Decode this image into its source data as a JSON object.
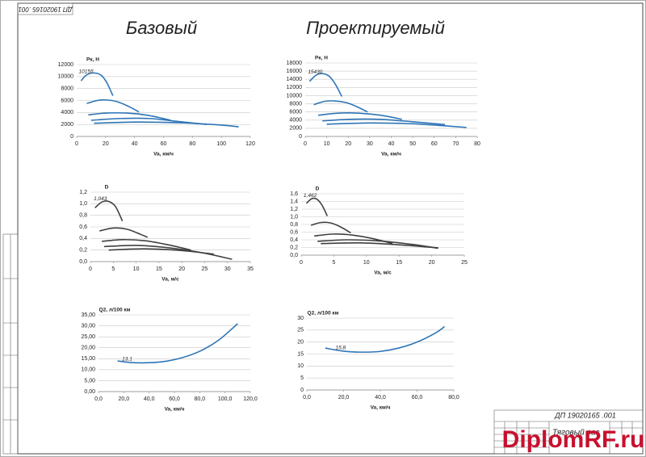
{
  "headings": {
    "base": "Базовый",
    "project": "Проектируемый"
  },
  "stamp": {
    "code_top": "ДП 19020165 .001",
    "code_bottom": "ДП 19020165 .001",
    "title": "Тяговый рас"
  },
  "watermark": "DiplomRF.ru",
  "chart_data": [
    {
      "type": "line",
      "y_label": "Pк, Н",
      "x_label": "Va, км/ч",
      "annotation": "10155",
      "xlim": [
        0,
        120
      ],
      "xticks": [
        0,
        20,
        40,
        60,
        80,
        100,
        120
      ],
      "ylim": [
        0,
        12000
      ],
      "yticks": [
        0,
        2000,
        4000,
        6000,
        8000,
        10000,
        12000
      ],
      "grid": true,
      "series": [
        {
          "color": "#2e75b6",
          "x": [
            3,
            7,
            12,
            17,
            21,
            25
          ],
          "values": [
            9300,
            10300,
            10600,
            10200,
            8900,
            6800
          ]
        },
        {
          "color": "#2e75b6",
          "x": [
            7,
            14,
            20,
            28,
            36,
            43
          ],
          "values": [
            5500,
            6000,
            6100,
            5800,
            5000,
            4100
          ]
        },
        {
          "color": "#2e75b6",
          "x": [
            8,
            20,
            35,
            50,
            65
          ],
          "values": [
            3600,
            3900,
            3900,
            3500,
            2700
          ]
        },
        {
          "color": "#2e75b6",
          "x": [
            10,
            30,
            50,
            70,
            90
          ],
          "values": [
            2700,
            3000,
            3000,
            2500,
            2000
          ]
        },
        {
          "color": "#2e75b6",
          "x": [
            12,
            40,
            70,
            100,
            112
          ],
          "values": [
            2200,
            2400,
            2300,
            1900,
            1600
          ]
        }
      ]
    },
    {
      "type": "line",
      "y_label": "Pк, Н",
      "x_label": "Va, км/ч",
      "annotation": "15430",
      "xlim": [
        0,
        80
      ],
      "xticks": [
        0,
        10,
        20,
        30,
        40,
        50,
        60,
        70,
        80
      ],
      "ylim": [
        0,
        18000
      ],
      "yticks": [
        0,
        2000,
        4000,
        6000,
        8000,
        10000,
        12000,
        14000,
        16000,
        18000
      ],
      "grid": true,
      "series": [
        {
          "color": "#2e75b6",
          "x": [
            2,
            5,
            8,
            11,
            14,
            17
          ],
          "values": [
            13500,
            15000,
            15400,
            14800,
            12800,
            9800
          ]
        },
        {
          "color": "#2e75b6",
          "x": [
            4,
            9,
            14,
            19,
            24,
            29
          ],
          "values": [
            7800,
            8600,
            8700,
            8300,
            7300,
            6000
          ]
        },
        {
          "color": "#2e75b6",
          "x": [
            6,
            15,
            25,
            35,
            45
          ],
          "values": [
            5200,
            5700,
            5700,
            5200,
            4200
          ]
        },
        {
          "color": "#2e75b6",
          "x": [
            8,
            20,
            35,
            50,
            65
          ],
          "values": [
            3800,
            4200,
            4200,
            3600,
            2900
          ]
        },
        {
          "color": "#2e75b6",
          "x": [
            10,
            30,
            50,
            65,
            75
          ],
          "values": [
            3000,
            3300,
            3100,
            2600,
            2200
          ]
        }
      ]
    },
    {
      "type": "line",
      "y_label": "D",
      "x_label": "Va, м/с",
      "annotation": "1,043",
      "xlim": [
        0,
        35
      ],
      "xticks": [
        0,
        5,
        10,
        15,
        20,
        25,
        30,
        35
      ],
      "ylim": [
        0,
        1.2
      ],
      "yticks": [
        {
          "value": 0,
          "label": "0,0"
        },
        {
          "value": 0.2,
          "label": "0,2"
        },
        {
          "value": 0.4,
          "label": "0,4"
        },
        {
          "value": 0.6,
          "label": "0,6"
        },
        {
          "value": 0.8,
          "label": "0,8"
        },
        {
          "value": 1,
          "label": "1,0"
        },
        {
          "value": 1.2,
          "label": "1,2"
        }
      ],
      "grid": true,
      "series": [
        {
          "color": "#404040",
          "x": [
            1,
            2.5,
            4,
            5.5,
            7
          ],
          "values": [
            0.93,
            1.03,
            1.04,
            0.95,
            0.7
          ]
        },
        {
          "color": "#404040",
          "x": [
            2,
            5,
            8,
            11,
            12.5
          ],
          "values": [
            0.53,
            0.58,
            0.56,
            0.47,
            0.42
          ]
        },
        {
          "color": "#404040",
          "x": [
            2.5,
            7,
            12,
            17,
            22
          ],
          "values": [
            0.35,
            0.38,
            0.36,
            0.29,
            0.2
          ]
        },
        {
          "color": "#404040",
          "x": [
            3,
            10,
            17,
            24,
            31
          ],
          "values": [
            0.26,
            0.28,
            0.24,
            0.16,
            0.04
          ]
        },
        {
          "color": "#404040",
          "x": [
            4,
            12,
            20,
            27
          ],
          "values": [
            0.2,
            0.22,
            0.19,
            0.13
          ]
        }
      ]
    },
    {
      "type": "line",
      "y_label": "D",
      "x_label": "Va, м/с",
      "annotation": "1,462",
      "xlim": [
        0,
        25
      ],
      "xticks": [
        0,
        5,
        10,
        15,
        20,
        25
      ],
      "ylim": [
        0,
        1.6
      ],
      "yticks": [
        {
          "value": 0,
          "label": "0,0"
        },
        {
          "value": 0.2,
          "label": "0,2"
        },
        {
          "value": 0.4,
          "label": "0,4"
        },
        {
          "value": 0.6,
          "label": "0,6"
        },
        {
          "value": 0.8,
          "label": "0,8"
        },
        {
          "value": 1,
          "label": "1,0"
        },
        {
          "value": 1.2,
          "label": "1,2"
        },
        {
          "value": 1.4,
          "label": "1,4"
        },
        {
          "value": 1.6,
          "label": "1,6"
        }
      ],
      "grid": true,
      "series": [
        {
          "color": "#404040",
          "x": [
            0.8,
            1.6,
            2.4,
            3.2,
            4
          ],
          "values": [
            1.35,
            1.47,
            1.46,
            1.3,
            1.02
          ]
        },
        {
          "color": "#404040",
          "x": [
            1.5,
            3,
            4.5,
            6,
            7.6
          ],
          "values": [
            0.78,
            0.85,
            0.84,
            0.74,
            0.58
          ]
        },
        {
          "color": "#404040",
          "x": [
            2,
            5,
            8,
            11,
            14
          ],
          "values": [
            0.5,
            0.55,
            0.52,
            0.43,
            0.3
          ]
        },
        {
          "color": "#404040",
          "x": [
            2.5,
            7,
            12,
            17,
            21
          ],
          "values": [
            0.36,
            0.4,
            0.37,
            0.28,
            0.18
          ]
        },
        {
          "color": "#404040",
          "x": [
            3,
            9,
            15,
            21
          ],
          "values": [
            0.3,
            0.32,
            0.27,
            0.19
          ]
        }
      ]
    },
    {
      "type": "line",
      "y_label": "Q2, л/100 км",
      "x_label": "Va, км/ч",
      "annotation": "13,1",
      "xlim": [
        0,
        120
      ],
      "xticks": [
        {
          "value": 0,
          "label": "0,0"
        },
        {
          "value": 20,
          "label": "20,0"
        },
        {
          "value": 40,
          "label": "40,0"
        },
        {
          "value": 60,
          "label": "60,0"
        },
        {
          "value": 80,
          "label": "80,0"
        },
        {
          "value": 100,
          "label": "100,0"
        },
        {
          "value": 120,
          "label": "120,0"
        }
      ],
      "ylim": [
        0,
        35
      ],
      "yticks": [
        {
          "value": 0,
          "label": "0,00"
        },
        {
          "value": 5,
          "label": "5,00"
        },
        {
          "value": 10,
          "label": "10,00"
        },
        {
          "value": 15,
          "label": "15,00"
        },
        {
          "value": 20,
          "label": "20,00"
        },
        {
          "value": 25,
          "label": "25,00"
        },
        {
          "value": 30,
          "label": "30,00"
        },
        {
          "value": 35,
          "label": "35,00"
        }
      ],
      "grid": true,
      "series": [
        {
          "color": "#2e75b6",
          "x": [
            15,
            25,
            35,
            50,
            65,
            80,
            95,
            110
          ],
          "values": [
            14,
            13.3,
            13.1,
            13.6,
            15.3,
            18.4,
            23.5,
            31
          ]
        }
      ]
    },
    {
      "type": "line",
      "y_label": "Q2, л/100 км",
      "x_label": "Va, км/ч",
      "annotation": "15,8",
      "xlim": [
        0,
        80
      ],
      "xticks": [
        {
          "value": 0,
          "label": "0,0"
        },
        {
          "value": 20,
          "label": "20,0"
        },
        {
          "value": 40,
          "label": "40,0"
        },
        {
          "value": 60,
          "label": "60,0"
        },
        {
          "value": 80,
          "label": "80,0"
        }
      ],
      "ylim": [
        0,
        30
      ],
      "yticks": [
        0,
        5,
        10,
        15,
        20,
        25,
        30
      ],
      "grid": true,
      "series": [
        {
          "color": "#2e75b6",
          "x": [
            10,
            20,
            30,
            40,
            50,
            60,
            70,
            75
          ],
          "values": [
            17.5,
            16.2,
            15.8,
            16.1,
            17.5,
            20,
            23.8,
            26.5
          ]
        }
      ]
    }
  ]
}
